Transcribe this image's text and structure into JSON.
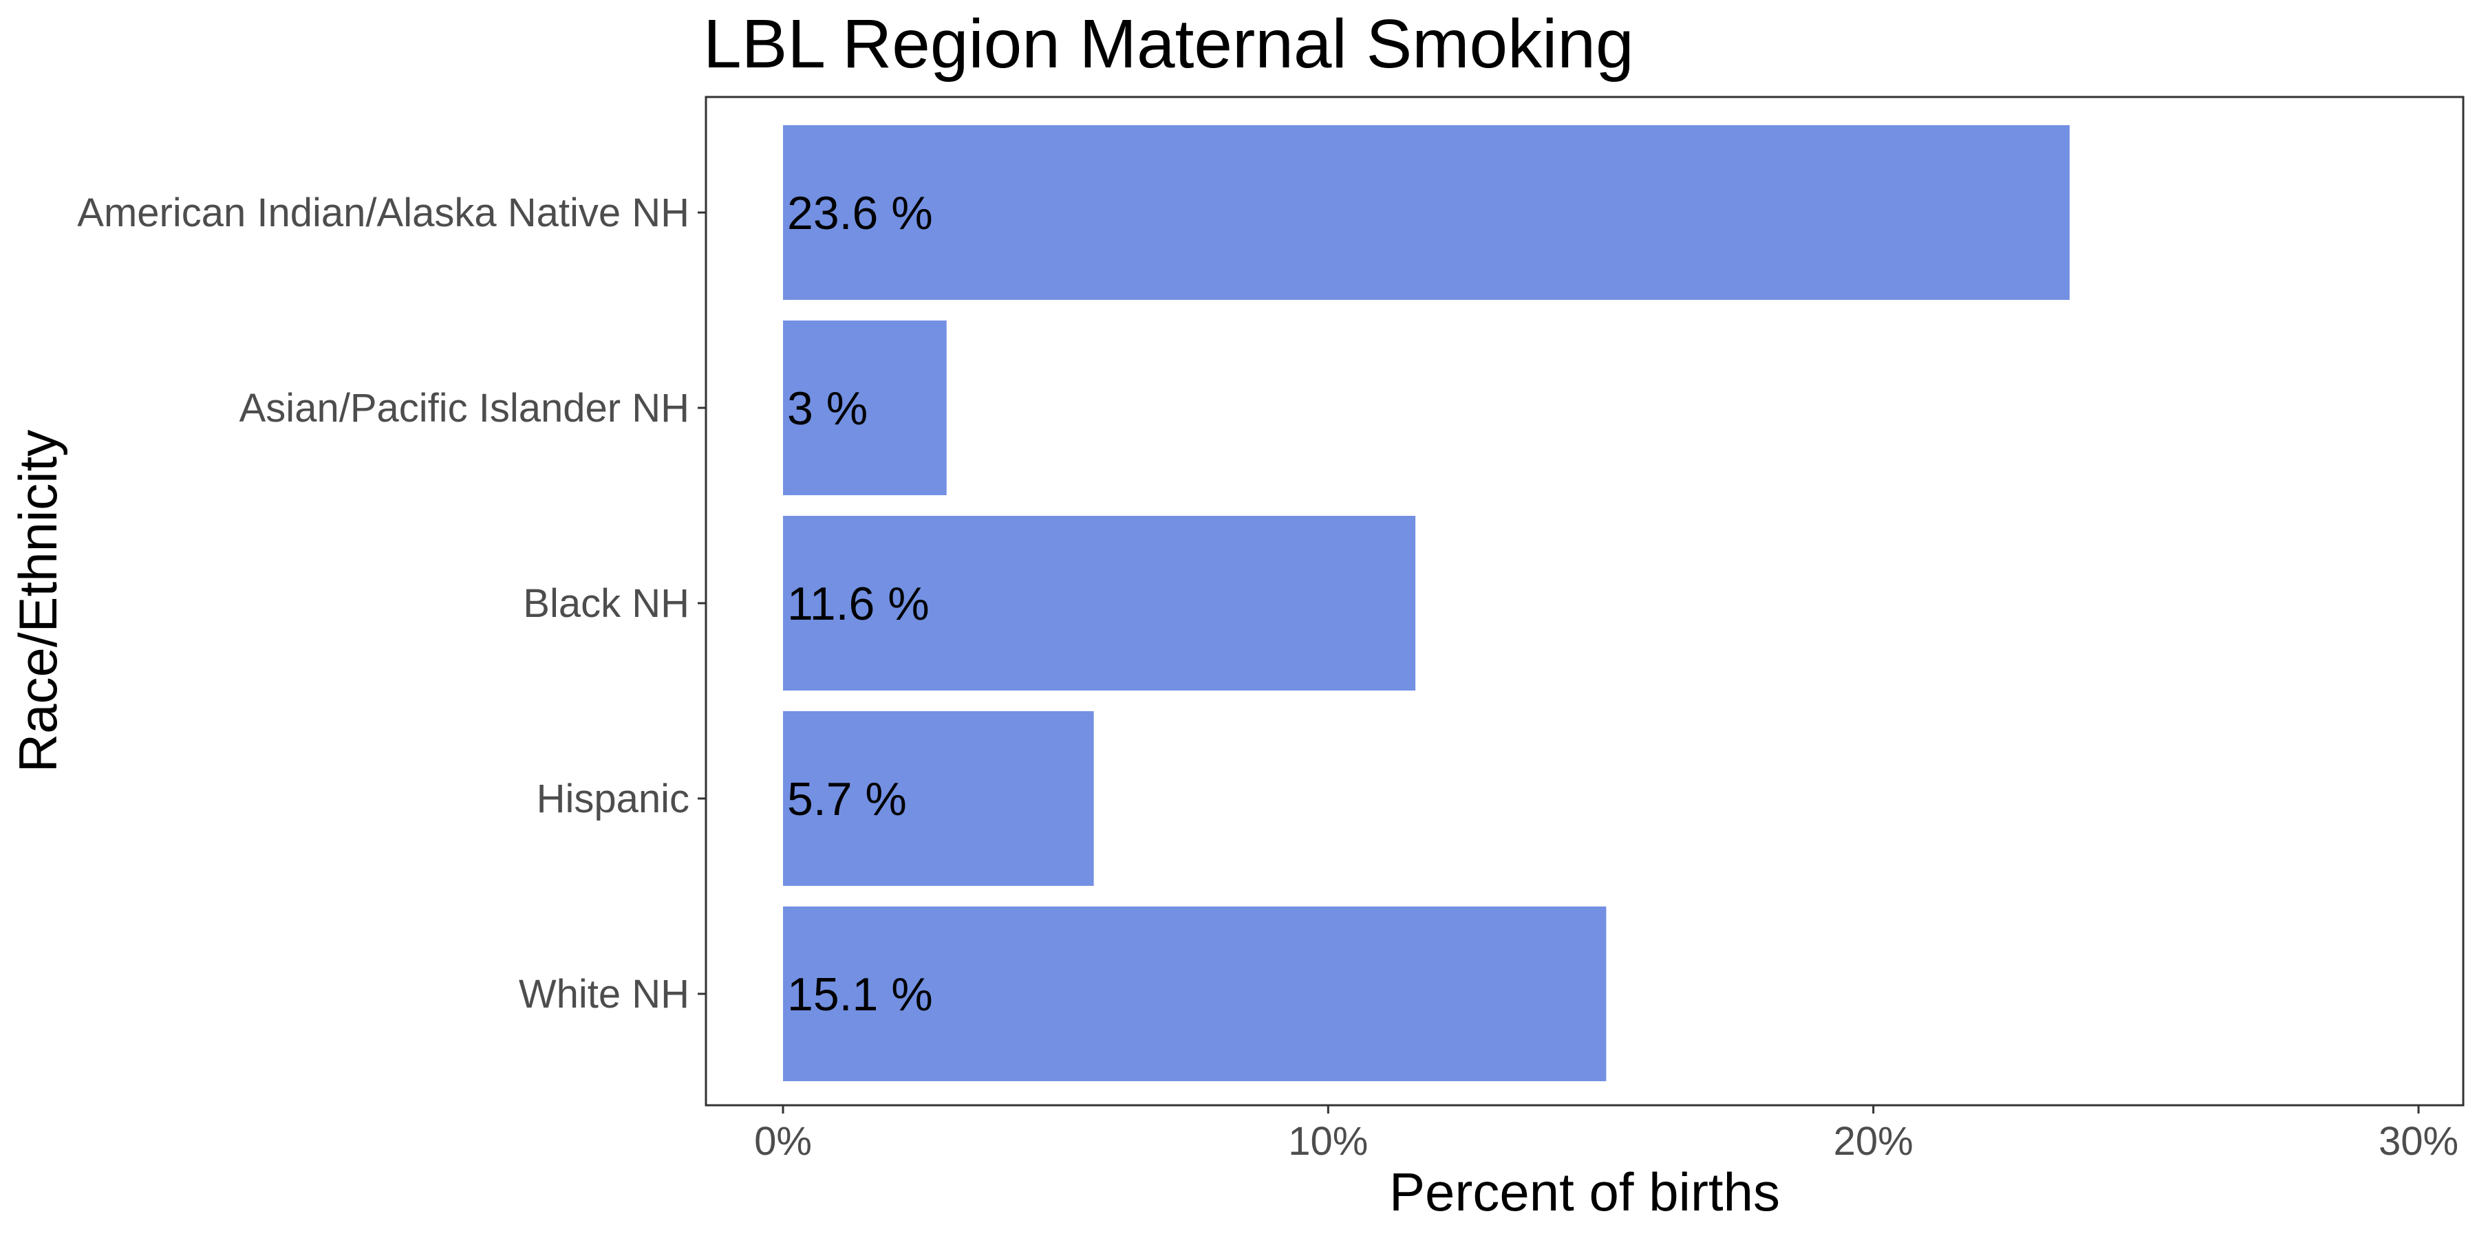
{
  "chart_data": {
    "type": "bar",
    "orientation": "horizontal",
    "title": "LBL Region Maternal Smoking",
    "xlabel": "Percent of births",
    "ylabel": "Race/Ethnicity",
    "xlim": [
      0,
      30
    ],
    "x_ticks": [
      0,
      10,
      20,
      30
    ],
    "x_tick_labels": [
      "0%",
      "10%",
      "20%",
      "30%"
    ],
    "categories": [
      "American Indian/Alaska Native NH",
      "Asian/Pacific Islander NH",
      "Black NH",
      "Hispanic",
      "White NH"
    ],
    "values": [
      23.6,
      3,
      11.6,
      5.7,
      15.1
    ],
    "data_labels": [
      "23.6 %",
      "3 %",
      "11.6 %",
      "5.7 %",
      "15.1 %"
    ],
    "bar_color": "#7390e2",
    "grid": false,
    "legend": "none"
  }
}
